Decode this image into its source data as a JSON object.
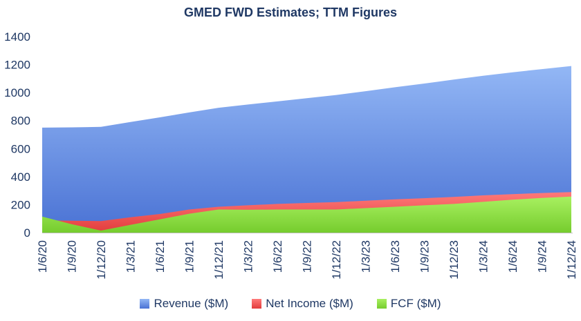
{
  "chart_data": {
    "type": "area",
    "title": "GMED FWD Estimates; TTM Figures",
    "xlabel": "",
    "ylabel": "",
    "ylim": [
      0,
      1400
    ],
    "yticks": [
      0,
      200,
      400,
      600,
      800,
      1000,
      1200,
      1400
    ],
    "grid": false,
    "legend_position": "bottom",
    "categories": [
      "1/6/20",
      "1/9/20",
      "1/12/20",
      "1/3/21",
      "1/6/21",
      "1/9/21",
      "1/12/21",
      "1/3/22",
      "1/6/22",
      "1/9/22",
      "1/12/22",
      "1/3/23",
      "1/6/23",
      "1/9/23",
      "1/12/23",
      "1/3/24",
      "1/6/24",
      "1/9/24",
      "1/12/24"
    ],
    "series": [
      {
        "name": "Revenue ($M)",
        "color": "#6f97e8",
        "values": [
          750,
          752,
          755,
          790,
          823,
          858,
          892,
          915,
          937,
          960,
          983,
          1010,
          1038,
          1065,
          1093,
          1120,
          1145,
          1168,
          1190
        ]
      },
      {
        "name": "Net Income ($M)",
        "color": "#f25252",
        "values": [
          88,
          85,
          83,
          110,
          133,
          165,
          185,
          195,
          205,
          212,
          218,
          228,
          238,
          246,
          255,
          266,
          275,
          283,
          290
        ]
      },
      {
        "name": "FCF ($M)",
        "color": "#8ee040",
        "values": [
          115,
          60,
          15,
          55,
          95,
          135,
          165,
          163,
          165,
          165,
          165,
          175,
          185,
          195,
          205,
          220,
          235,
          248,
          258
        ]
      }
    ]
  }
}
